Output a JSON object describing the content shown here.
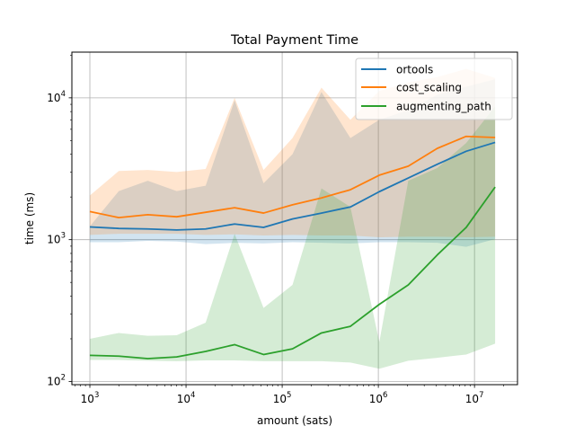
{
  "chart_data": {
    "type": "line",
    "title": "Total Payment Time",
    "xlabel": "amount (sats)",
    "ylabel": "time (ms)",
    "xscale": "log",
    "yscale": "log",
    "xlim": [
      650,
      28000000
    ],
    "ylim": [
      95,
      21000
    ],
    "grid": true,
    "legend_position": "top-right",
    "x_ticks": [
      {
        "value": 1000,
        "base": "10",
        "exp": "3"
      },
      {
        "value": 10000,
        "base": "10",
        "exp": "4"
      },
      {
        "value": 100000,
        "base": "10",
        "exp": "5"
      },
      {
        "value": 1000000,
        "base": "10",
        "exp": "6"
      },
      {
        "value": 10000000,
        "base": "10",
        "exp": "7"
      }
    ],
    "y_ticks": [
      {
        "value": 100,
        "base": "10",
        "exp": "2"
      },
      {
        "value": 1000,
        "base": "10",
        "exp": "3"
      },
      {
        "value": 10000,
        "base": "10",
        "exp": "4"
      }
    ],
    "x": [
      1000,
      2000,
      4000,
      8000,
      16000,
      32000,
      64000,
      128000,
      256000,
      512000,
      1024000,
      2048000,
      4096000,
      8192000,
      16384000
    ],
    "series": [
      {
        "name": "ortools",
        "color": "#1f77b4",
        "values": [
          1230,
          1200,
          1190,
          1170,
          1190,
          1290,
          1220,
          1400,
          1540,
          1700,
          2180,
          2720,
          3400,
          4200,
          4850
        ],
        "lower": [
          960,
          960,
          980,
          970,
          930,
          950,
          940,
          960,
          950,
          940,
          960,
          960,
          950,
          890,
          1010
        ],
        "upper": [
          1240,
          2200,
          2600,
          2200,
          2400,
          9600,
          2500,
          4000,
          11000,
          5200,
          7000,
          8200,
          10500,
          12000,
          13500
        ]
      },
      {
        "name": "cost_scaling",
        "color": "#ff7f0e",
        "values": [
          1580,
          1430,
          1500,
          1450,
          1560,
          1680,
          1540,
          1760,
          1970,
          2250,
          2850,
          3300,
          4400,
          5350,
          5250
        ],
        "lower": [
          1080,
          1100,
          1100,
          1100,
          1080,
          1090,
          1070,
          1080,
          1070,
          1070,
          1040,
          1050,
          1050,
          1040,
          1050
        ],
        "upper": [
          2050,
          3050,
          3100,
          3000,
          3150,
          10000,
          3100,
          5200,
          11800,
          7000,
          11200,
          12800,
          14000,
          16000,
          13800
        ]
      },
      {
        "name": "augmenting_path",
        "color": "#2ca02c",
        "values": [
          153,
          151,
          145,
          149,
          163,
          182,
          155,
          170,
          220,
          245,
          350,
          480,
          780,
          1220,
          2350
        ],
        "lower": [
          142,
          142,
          140,
          139,
          141,
          141,
          139,
          139,
          139,
          136,
          123,
          140,
          147,
          155,
          185
        ],
        "upper": [
          200,
          220,
          210,
          212,
          260,
          1100,
          330,
          480,
          2300,
          1700,
          190,
          2600,
          3200,
          4800,
          8700
        ]
      }
    ]
  }
}
